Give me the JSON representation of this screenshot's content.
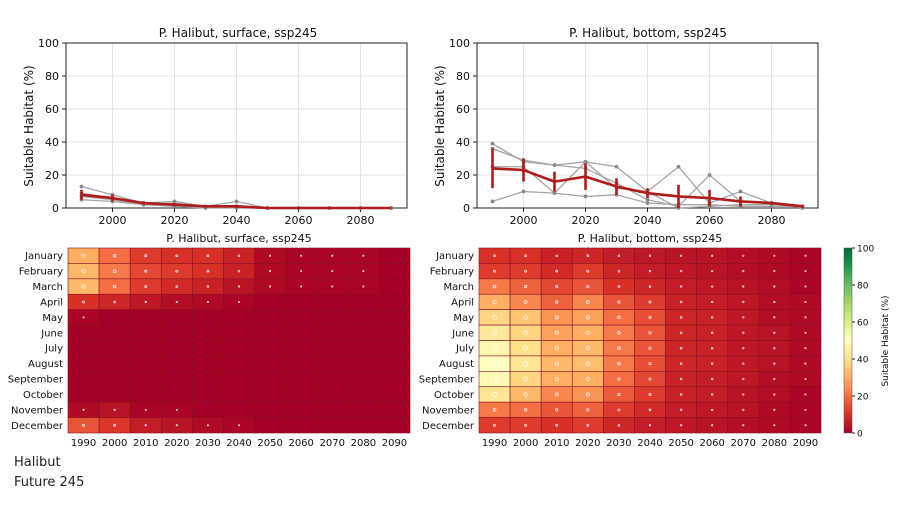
{
  "chart_data": [
    {
      "type": "line",
      "title": "P. Halibut, surface, ssp245",
      "ylabel": "Suitable Habitat (%)",
      "xlabel": "",
      "ylim": [
        0,
        100
      ],
      "yticks": [
        0,
        20,
        40,
        60,
        80,
        100
      ],
      "xticks": [
        2000,
        2020,
        2040,
        2060,
        2080
      ],
      "x": [
        1990,
        2000,
        2010,
        2020,
        2030,
        2040,
        2050,
        2060,
        2070,
        2080,
        2090
      ],
      "grid": true,
      "member_series": [
        {
          "name": "member 1",
          "values": [
            13,
            8,
            3,
            4,
            1,
            4,
            0,
            0,
            0,
            0,
            0
          ]
        },
        {
          "name": "member 2",
          "values": [
            9,
            6,
            3,
            2,
            1,
            1,
            0,
            0,
            0,
            0,
            0
          ]
        },
        {
          "name": "member 3",
          "values": [
            7,
            5,
            2,
            3,
            1,
            0,
            0,
            0,
            0,
            0,
            0
          ]
        },
        {
          "name": "member 4",
          "values": [
            5,
            4,
            2,
            1,
            0,
            0,
            0,
            0,
            0,
            0,
            0
          ]
        }
      ],
      "mean_series": {
        "name": "ensemble mean",
        "values": [
          8,
          6,
          3,
          2,
          1,
          1,
          0,
          0,
          0,
          0,
          0
        ],
        "err": [
          3,
          2,
          1,
          1,
          0,
          1,
          0,
          0,
          0,
          0,
          0
        ]
      }
    },
    {
      "type": "line",
      "title": "P. Halibut, bottom, ssp245",
      "ylabel": "Suitable Habitat (%)",
      "xlabel": "",
      "ylim": [
        0,
        100
      ],
      "yticks": [
        0,
        20,
        40,
        60,
        80,
        100
      ],
      "xticks": [
        2000,
        2020,
        2040,
        2060,
        2080
      ],
      "x": [
        1990,
        2000,
        2010,
        2020,
        2030,
        2040,
        2050,
        2060,
        2070,
        2080,
        2090
      ],
      "grid": true,
      "member_series": [
        {
          "name": "member 1",
          "values": [
            39,
            28,
            26,
            28,
            25,
            10,
            25,
            3,
            10,
            3,
            0
          ]
        },
        {
          "name": "member 2",
          "values": [
            36,
            29,
            26,
            24,
            15,
            5,
            1,
            20,
            4,
            3,
            1
          ]
        },
        {
          "name": "member 3",
          "values": [
            25,
            25,
            9,
            28,
            12,
            10,
            0,
            1,
            2,
            2,
            1
          ]
        },
        {
          "name": "member 4",
          "values": [
            4,
            10,
            9,
            7,
            8,
            3,
            2,
            2,
            1,
            1,
            1
          ]
        }
      ],
      "mean_series": {
        "name": "ensemble mean",
        "values": [
          24,
          23,
          16,
          19,
          13,
          9,
          7,
          6,
          4,
          3,
          1
        ],
        "err": [
          12,
          7,
          6,
          8,
          5,
          3,
          7,
          5,
          3,
          1,
          1
        ]
      }
    },
    {
      "type": "heatmap",
      "title": "P. Halibut, surface, ssp245",
      "rows": [
        "January",
        "February",
        "March",
        "April",
        "May",
        "June",
        "July",
        "August",
        "September",
        "October",
        "November",
        "December"
      ],
      "columns": [
        "1990",
        "2000",
        "2010",
        "2020",
        "2030",
        "2040",
        "2050",
        "2060",
        "2070",
        "2080",
        "2090"
      ],
      "values": [
        [
          30,
          20,
          12,
          10,
          10,
          7,
          2,
          1,
          1,
          1,
          0
        ],
        [
          32,
          22,
          14,
          12,
          10,
          7,
          2,
          1,
          1,
          1,
          0
        ],
        [
          32,
          20,
          12,
          9,
          7,
          4,
          2,
          1,
          1,
          1,
          0
        ],
        [
          10,
          8,
          5,
          3,
          2,
          1,
          0,
          0,
          0,
          0,
          0
        ],
        [
          1,
          0,
          0,
          0,
          0,
          0,
          0,
          0,
          0,
          0,
          0
        ],
        [
          0,
          0,
          0,
          0,
          0,
          0,
          0,
          0,
          0,
          0,
          0
        ],
        [
          0,
          0,
          0,
          0,
          0,
          0,
          0,
          0,
          0,
          0,
          0
        ],
        [
          0,
          0,
          0,
          0,
          0,
          0,
          0,
          0,
          0,
          0,
          0
        ],
        [
          0,
          0,
          0,
          0,
          0,
          0,
          0,
          0,
          0,
          0,
          0
        ],
        [
          0,
          0,
          0,
          0,
          0,
          0,
          0,
          0,
          0,
          0,
          0
        ],
        [
          2,
          4,
          1,
          1,
          0,
          0,
          0,
          0,
          0,
          0,
          0
        ],
        [
          16,
          11,
          6,
          4,
          2,
          1,
          0,
          0,
          0,
          0,
          0
        ]
      ]
    },
    {
      "type": "heatmap",
      "title": "P. Halibut, bottom, ssp245",
      "rows": [
        "January",
        "February",
        "March",
        "April",
        "May",
        "June",
        "July",
        "August",
        "September",
        "October",
        "November",
        "December"
      ],
      "columns": [
        "1990",
        "2000",
        "2010",
        "2020",
        "2030",
        "2040",
        "2050",
        "2060",
        "2070",
        "2080",
        "2090"
      ],
      "values": [
        [
          10,
          10,
          7,
          8,
          6,
          5,
          4,
          4,
          3,
          2,
          1
        ],
        [
          12,
          12,
          9,
          12,
          8,
          6,
          5,
          4,
          3,
          2,
          1
        ],
        [
          22,
          18,
          14,
          16,
          10,
          8,
          6,
          5,
          4,
          3,
          1
        ],
        [
          30,
          24,
          18,
          24,
          16,
          12,
          7,
          6,
          5,
          3,
          2
        ],
        [
          38,
          34,
          26,
          28,
          20,
          15,
          8,
          7,
          5,
          3,
          2
        ],
        [
          43,
          38,
          28,
          30,
          22,
          16,
          8,
          7,
          5,
          4,
          2
        ],
        [
          47,
          40,
          30,
          32,
          22,
          16,
          8,
          7,
          5,
          4,
          2
        ],
        [
          50,
          42,
          32,
          33,
          22,
          15,
          8,
          7,
          5,
          4,
          2
        ],
        [
          48,
          38,
          30,
          30,
          20,
          14,
          7,
          6,
          5,
          3,
          2
        ],
        [
          42,
          32,
          24,
          26,
          17,
          12,
          7,
          6,
          4,
          3,
          1
        ],
        [
          22,
          20,
          16,
          18,
          12,
          9,
          6,
          5,
          4,
          2,
          1
        ],
        [
          12,
          12,
          10,
          12,
          8,
          6,
          5,
          4,
          3,
          2,
          1
        ]
      ]
    }
  ],
  "colorbar": {
    "label": "Suitable Habitat (%)",
    "ticks": [
      0,
      20,
      40,
      60,
      80,
      100
    ],
    "vmin": 0,
    "vmax": 100
  },
  "colors": {
    "member_line": "#a6a6a6",
    "mean_line": "#b01c1c",
    "grid": "#e3e3e3",
    "cmap": [
      "#a50026",
      "#d73027",
      "#f46d43",
      "#fdae61",
      "#fee08b",
      "#ffffbf",
      "#d9ef8b",
      "#a6d96a",
      "#66bd63",
      "#1a9850",
      "#006837"
    ]
  },
  "caption": {
    "line1": "Halibut",
    "line2": "Future 245"
  }
}
